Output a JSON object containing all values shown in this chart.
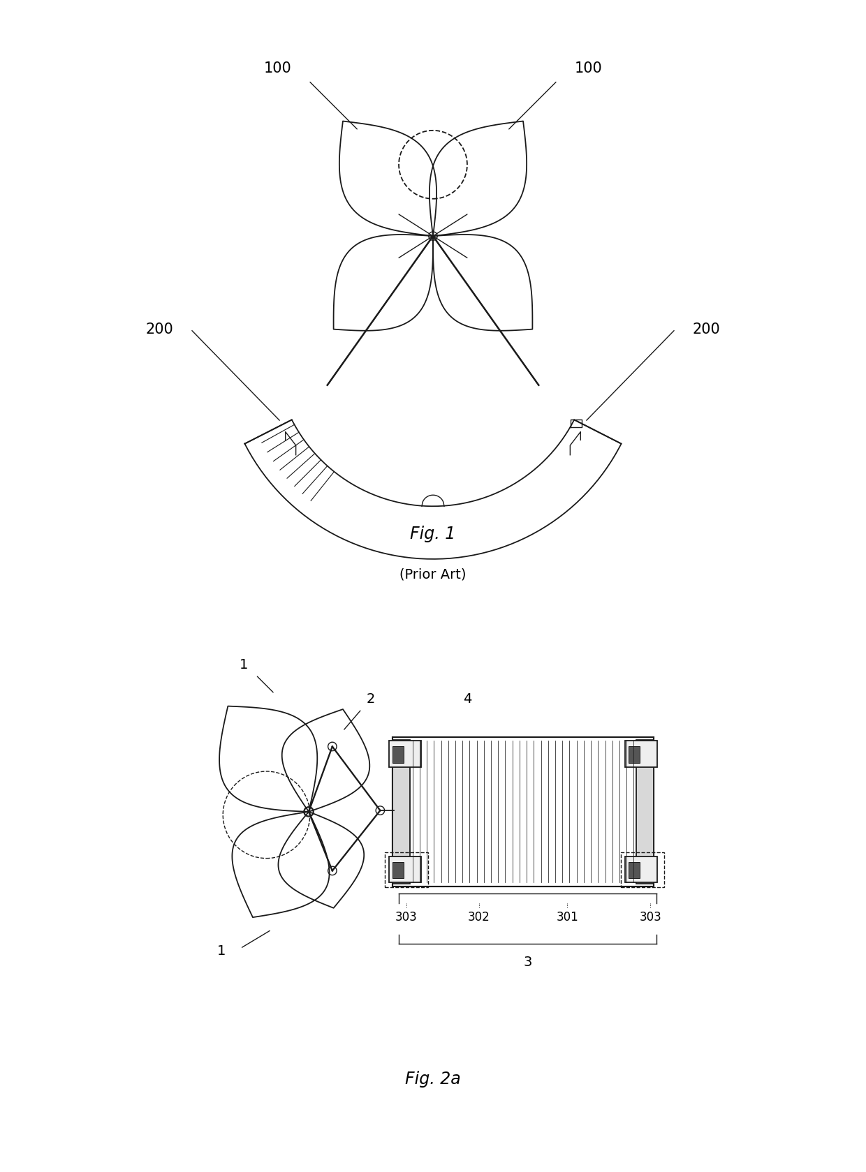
{
  "bg_color": "#ffffff",
  "line_color": "#1a1a1a",
  "fig_width": 12.4,
  "fig_height": 16.79,
  "fig1_label": "Fig. 1",
  "fig1_sublabel": "(Prior Art)",
  "fig2_label": "Fig. 2a",
  "label_100_left": "100",
  "label_100_right": "100",
  "label_200_left": "200",
  "label_200_right": "200",
  "label_1_top": "1",
  "label_1_bottom": "1",
  "label_2": "2",
  "label_3": "3",
  "label_4": "4",
  "label_301": "301",
  "label_302": "302",
  "label_303_left": "303",
  "label_303_right": "303"
}
